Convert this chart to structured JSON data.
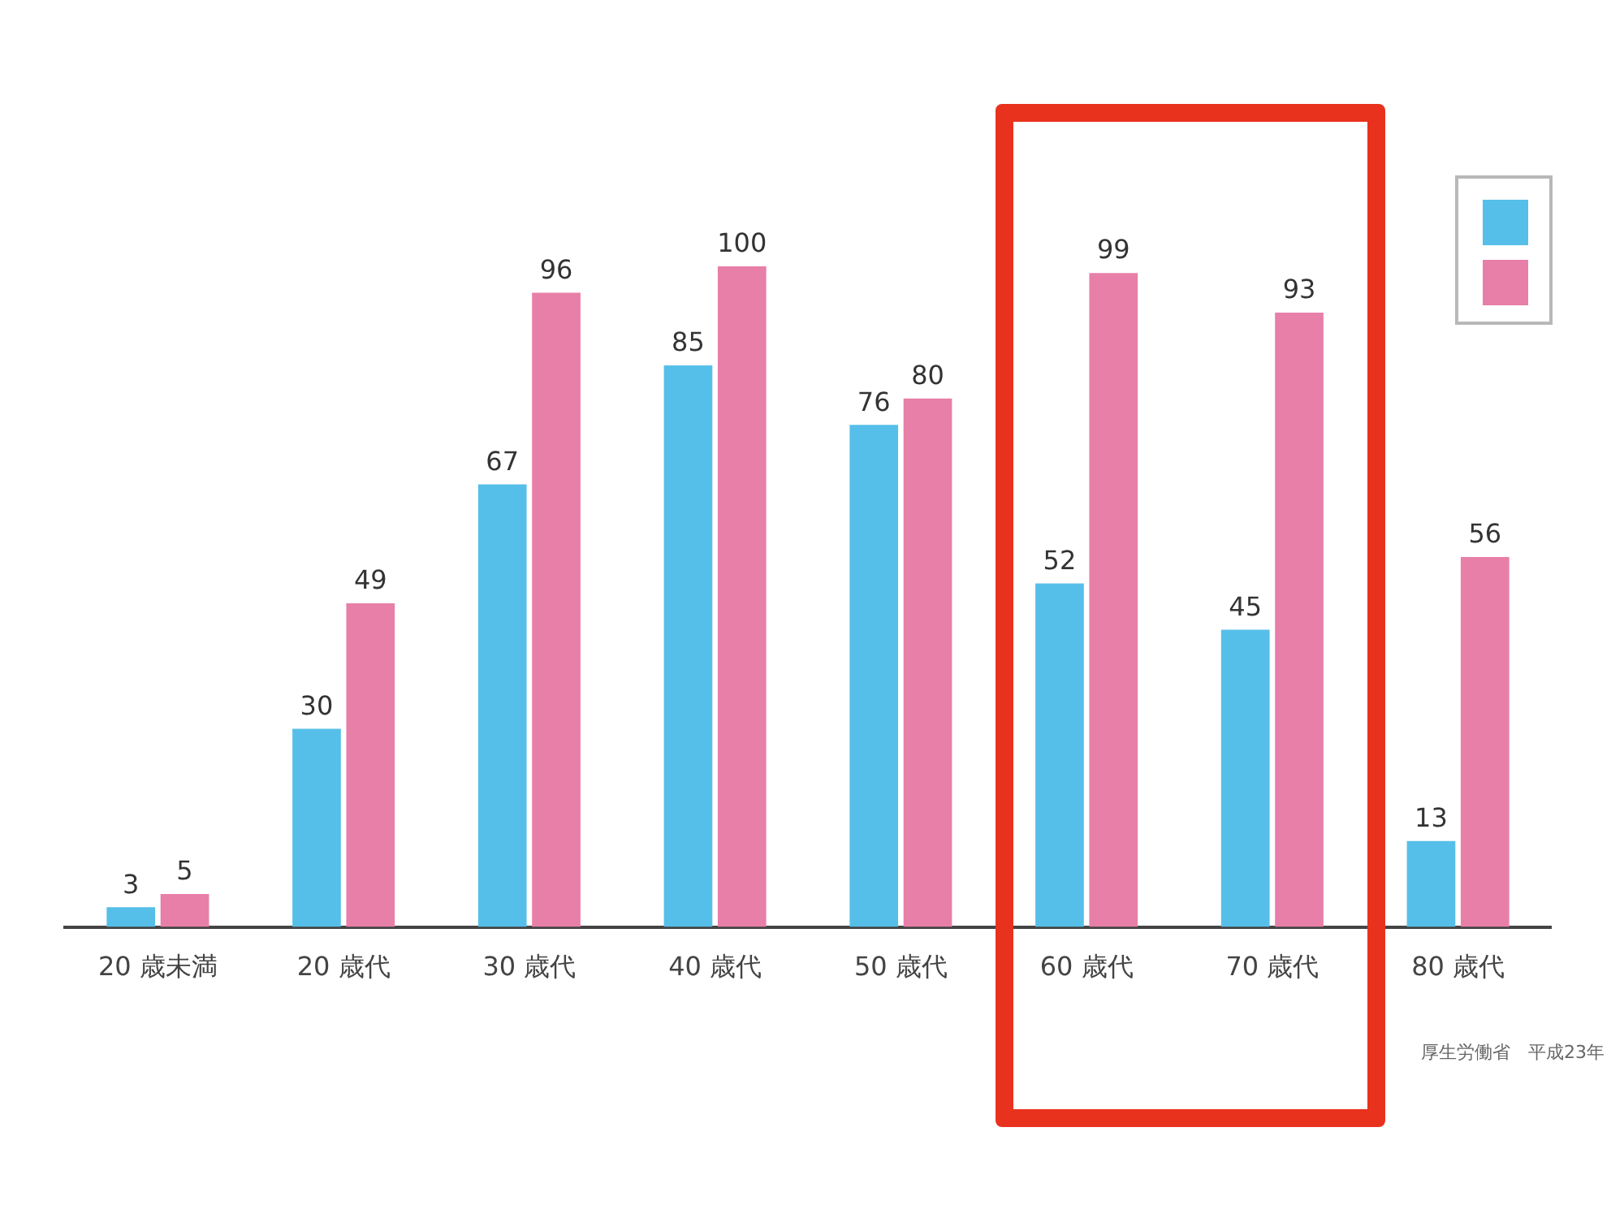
{
  "chart_data": {
    "type": "bar",
    "categories": [
      "20 歳未満",
      "20 歳代",
      "30 歳代",
      "40 歳代",
      "50 歳代",
      "60 歳代",
      "70 歳代",
      "80 歳代"
    ],
    "series": [
      {
        "color": "#56bfe9",
        "values": [
          3,
          30,
          67,
          85,
          76,
          52,
          45,
          13
        ]
      },
      {
        "color": "#e87fa8",
        "values": [
          5,
          49,
          96,
          100,
          80,
          99,
          93,
          56
        ]
      }
    ],
    "ylim": [
      0,
      100
    ],
    "tick_labels": "x",
    "data_labels": true,
    "annotations": [
      "厚生労働省　平成23年"
    ]
  }
}
